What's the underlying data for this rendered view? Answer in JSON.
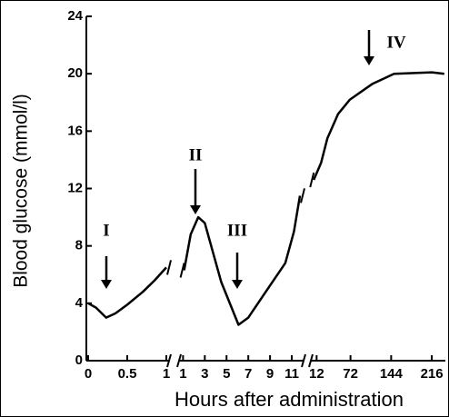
{
  "chart_data": {
    "type": "line",
    "ylabel": "Blood glucose (mmol/l)",
    "xlabel": "Hours after administration",
    "ylim": [
      0,
      24
    ],
    "yticks": [
      0,
      4,
      8,
      12,
      16,
      20,
      24
    ],
    "color": "#000000",
    "annotations": [
      "I",
      "II",
      "III",
      "IV"
    ],
    "segments": [
      {
        "xlim": [
          0,
          1
        ],
        "xticks": [
          0,
          0.5,
          1
        ],
        "x": [
          0,
          0.1,
          0.23,
          0.35,
          0.5,
          0.7,
          0.85,
          1.0
        ],
        "values": [
          4.0,
          3.7,
          3.0,
          3.3,
          3.9,
          4.8,
          5.6,
          6.5
        ]
      },
      {
        "xlim": [
          0.8,
          12
        ],
        "xticks": [
          1,
          3,
          5,
          7,
          9,
          11
        ],
        "x": [
          1.1,
          1.7,
          2.4,
          3.0,
          4.5,
          6.1,
          7.0,
          8.7,
          10.4,
          11.2,
          11.75
        ],
        "values": [
          6.3,
          8.8,
          10.0,
          9.6,
          5.5,
          2.5,
          3.0,
          4.9,
          6.8,
          9.0,
          11.5
        ]
      },
      {
        "xlim": [
          5,
          240
        ],
        "xticks": [
          12,
          72,
          144,
          216
        ],
        "x": [
          7,
          20,
          31,
          50,
          71,
          111,
          149,
          216,
          238
        ],
        "values": [
          12.6,
          13.8,
          15.5,
          17.2,
          18.2,
          19.3,
          20.0,
          20.1,
          20.0
        ]
      }
    ]
  }
}
